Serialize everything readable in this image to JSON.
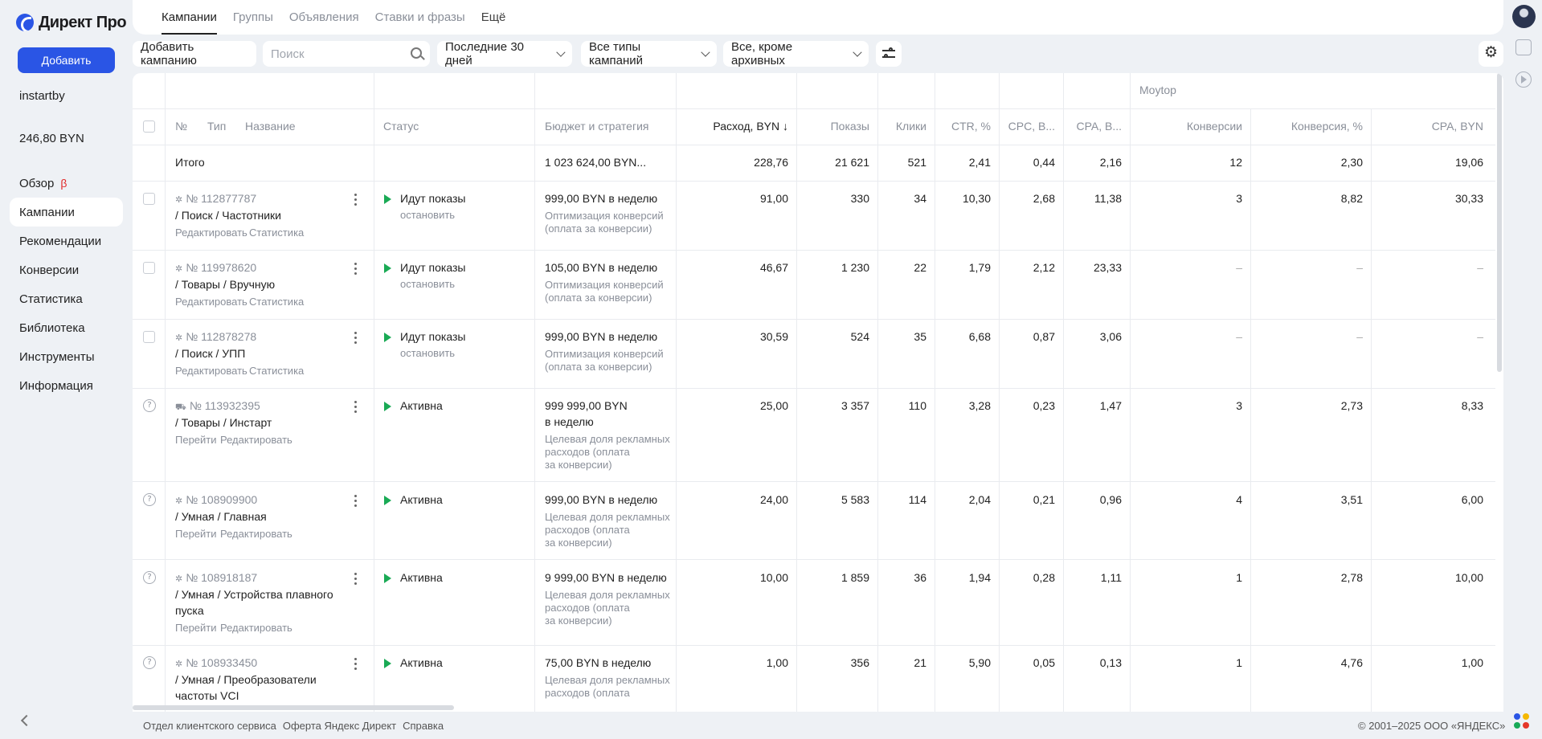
{
  "app": {
    "logo_text": "Директ Про"
  },
  "sidebar": {
    "add_label": "Добавить",
    "client": "instartby",
    "balance": "246,80 BYN",
    "items": [
      {
        "label": "Обзор",
        "badge": "β"
      },
      {
        "label": "Кампании"
      },
      {
        "label": "Рекомендации"
      },
      {
        "label": "Конверсии"
      },
      {
        "label": "Статистика"
      },
      {
        "label": "Библиотека"
      },
      {
        "label": "Инструменты"
      },
      {
        "label": "Информация"
      }
    ]
  },
  "tabs": [
    "Кампании",
    "Группы",
    "Объявления",
    "Ставки и фразы",
    "Ещё"
  ],
  "filters": {
    "add_campaign": "Добавить кампанию",
    "search_placeholder": "Поиск",
    "period": "Последние 30 дней",
    "types": "Все типы кампаний",
    "archive": "Все, кроме архивных"
  },
  "table": {
    "group_header": "Moytop",
    "headers": {
      "num": "№",
      "type": "Тип",
      "name": "Название",
      "status": "Статус",
      "budget": "Бюджет и стратегия",
      "cost": "Расход, BYN ↓",
      "shows": "Показы",
      "clicks": "Клики",
      "ctr": "CTR, %",
      "cpc": "CPC, B...",
      "cpa": "CPA, B...",
      "conv": "Конверсии",
      "convr": "Конверсия, %",
      "cpa2": "CPA, BYN"
    },
    "total": {
      "label": "Итого",
      "budget": "1 023 624,00 BYN...",
      "cost": "228,76",
      "shows": "21 621",
      "clicks": "521",
      "ctr": "2,41",
      "cpc": "0,44",
      "cpa": "2,16",
      "conv": "12",
      "convr": "2,30",
      "cpa2": "19,06"
    },
    "rows": [
      {
        "id": "№ 112877787",
        "name1": "/ Поиск / Частотники",
        "name2": "",
        "link1": "Редактировать",
        "link2": "Статистика",
        "status": "Идут показы",
        "status_sub": "остановить",
        "budget1": "999,00 BYN в неделю",
        "budget2": "",
        "strat1": "Оптимизация конверсий",
        "strat2": "(оплата за конверсии)",
        "strat3": "",
        "cost": "91,00",
        "shows": "330",
        "clicks": "34",
        "ctr": "10,30",
        "cpc": "2,68",
        "cpa": "11,38",
        "conv": "3",
        "convr": "8,82",
        "cpa2": "30,33"
      },
      {
        "id": "№ 119978620",
        "name1": "/ Товары / Вручную",
        "name2": "",
        "link1": "Редактировать",
        "link2": "Статистика",
        "status": "Идут показы",
        "status_sub": "остановить",
        "budget1": "105,00 BYN в неделю",
        "budget2": "",
        "strat1": "Оптимизация конверсий",
        "strat2": "(оплата за конверсии)",
        "strat3": "",
        "cost": "46,67",
        "shows": "1 230",
        "clicks": "22",
        "ctr": "1,79",
        "cpc": "2,12",
        "cpa": "23,33",
        "conv": "–",
        "convr": "–",
        "cpa2": "–"
      },
      {
        "id": "№ 112878278",
        "name1": "/ Поиск / УПП",
        "name2": "",
        "link1": "Редактировать",
        "link2": "Статистика",
        "status": "Идут показы",
        "status_sub": "остановить",
        "budget1": "999,00 BYN в неделю",
        "budget2": "",
        "strat1": "Оптимизация конверсий",
        "strat2": "(оплата за конверсии)",
        "strat3": "",
        "cost": "30,59",
        "shows": "524",
        "clicks": "35",
        "ctr": "6,68",
        "cpc": "0,87",
        "cpa": "3,06",
        "conv": "–",
        "convr": "–",
        "cpa2": "–"
      },
      {
        "id": "№ 113932395",
        "name1": "/ Товары / Инстарт",
        "name2": "",
        "link1": "Перейти",
        "link2": "Редактировать",
        "status": "Активна",
        "status_sub": "",
        "budget1": "999 999,00 BYN",
        "budget2": "в неделю",
        "strat1": "Целевая доля рекламных",
        "strat2": "расходов (оплата",
        "strat3": "за конверсии)",
        "cost": "25,00",
        "shows": "3 357",
        "clicks": "110",
        "ctr": "3,28",
        "cpc": "0,23",
        "cpa": "1,47",
        "conv": "3",
        "convr": "2,73",
        "cpa2": "8,33"
      },
      {
        "id": "№ 108909900",
        "name1": "/ Умная / Главная",
        "name2": "",
        "link1": "Перейти",
        "link2": "Редактировать",
        "status": "Активна",
        "status_sub": "",
        "budget1": "999,00 BYN в неделю",
        "budget2": "",
        "strat1": "Целевая доля рекламных",
        "strat2": "расходов (оплата",
        "strat3": "за конверсии)",
        "cost": "24,00",
        "shows": "5 583",
        "clicks": "114",
        "ctr": "2,04",
        "cpc": "0,21",
        "cpa": "0,96",
        "conv": "4",
        "convr": "3,51",
        "cpa2": "6,00"
      },
      {
        "id": "№ 108918187",
        "name1": "/ Умная / Устройства плавного",
        "name2": "пуска",
        "link1": "Перейти",
        "link2": "Редактировать",
        "status": "Активна",
        "status_sub": "",
        "budget1": "9 999,00 BYN в неделю",
        "budget2": "",
        "strat1": "Целевая доля рекламных",
        "strat2": "расходов (оплата",
        "strat3": "за конверсии)",
        "cost": "10,00",
        "shows": "1 859",
        "clicks": "36",
        "ctr": "1,94",
        "cpc": "0,28",
        "cpa": "1,11",
        "conv": "1",
        "convr": "2,78",
        "cpa2": "10,00"
      },
      {
        "id": "№ 108933450",
        "name1": "/ Умная / Преобразователи",
        "name2": "частоты VCI",
        "link1": "",
        "link2": "",
        "status": "Активна",
        "status_sub": "",
        "budget1": "75,00 BYN в неделю",
        "budget2": "",
        "strat1": "Целевая доля рекламных",
        "strat2": "расходов (оплата",
        "strat3": "",
        "cost": "1,00",
        "shows": "356",
        "clicks": "21",
        "ctr": "5,90",
        "cpc": "0,05",
        "cpa": "0,13",
        "conv": "1",
        "convr": "4,76",
        "cpa2": "1,00"
      }
    ]
  },
  "footer": {
    "links": [
      "Отдел клиентского сервиса",
      "Оферта Яндекс Директ",
      "Справка"
    ],
    "copyright": "© 2001–2025 ООО «ЯНДЕКС»"
  }
}
